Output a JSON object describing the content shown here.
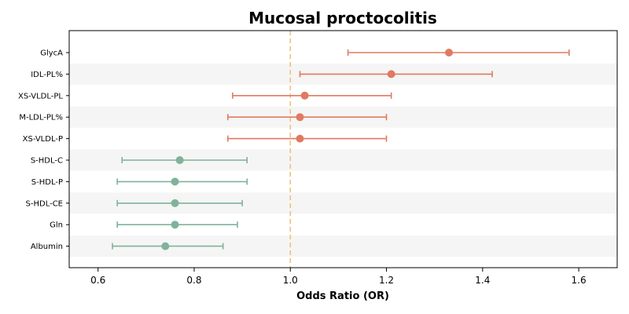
{
  "chart_data": {
    "type": "scatter",
    "title": "Mucosal proctocolitis",
    "xlabel": "Odds Ratio (OR)",
    "ylabel": "",
    "xlim": [
      0.54,
      1.68
    ],
    "xticks": [
      0.6,
      0.8,
      1.0,
      1.2,
      1.4,
      1.6
    ],
    "xtick_labels": [
      "0.6",
      "0.8",
      "1.0",
      "1.2",
      "1.4",
      "1.6"
    ],
    "reference_line": 1.0,
    "colors": {
      "risk": "#E07A5F",
      "protective": "#81B29A",
      "reference": "#F2C078",
      "band": "#F5F5F5"
    },
    "points": [
      {
        "label": "GlycA",
        "or": 1.33,
        "lower": 1.12,
        "upper": 1.58,
        "group": "risk"
      },
      {
        "label": "IDL-PL%",
        "or": 1.21,
        "lower": 1.02,
        "upper": 1.42,
        "group": "risk"
      },
      {
        "label": "XS-VLDL-PL",
        "or": 1.03,
        "lower": 0.88,
        "upper": 1.21,
        "group": "risk"
      },
      {
        "label": "M-LDL-PL%",
        "or": 1.02,
        "lower": 0.87,
        "upper": 1.2,
        "group": "risk"
      },
      {
        "label": "XS-VLDL-P",
        "or": 1.02,
        "lower": 0.87,
        "upper": 1.2,
        "group": "risk"
      },
      {
        "label": "S-HDL-C",
        "or": 0.77,
        "lower": 0.65,
        "upper": 0.91,
        "group": "protective"
      },
      {
        "label": "S-HDL-P",
        "or": 0.76,
        "lower": 0.64,
        "upper": 0.91,
        "group": "protective"
      },
      {
        "label": "S-HDL-CE",
        "or": 0.76,
        "lower": 0.64,
        "upper": 0.9,
        "group": "protective"
      },
      {
        "label": "Gln",
        "or": 0.76,
        "lower": 0.64,
        "upper": 0.89,
        "group": "protective"
      },
      {
        "label": "Albumin",
        "or": 0.74,
        "lower": 0.63,
        "upper": 0.86,
        "group": "protective"
      }
    ]
  }
}
